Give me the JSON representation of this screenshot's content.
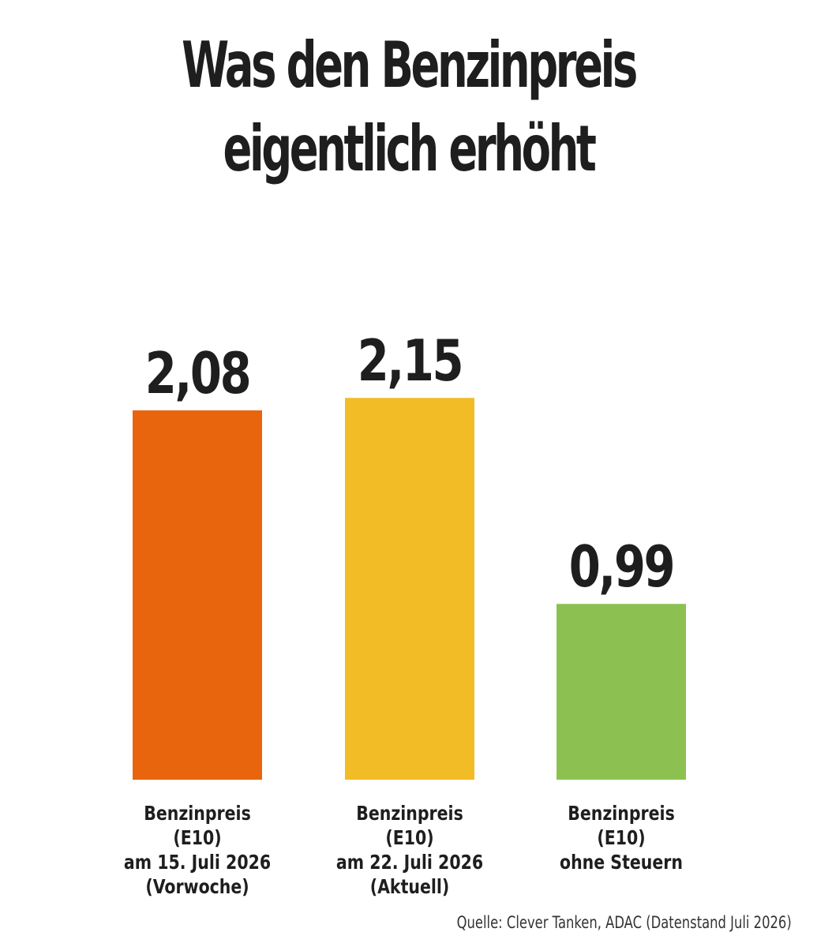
{
  "chart_data": {
    "type": "bar",
    "title_lines": [
      "Was den Benzinpreis",
      "eigentlich erhöht"
    ],
    "categories": [
      {
        "label_lines": [
          "Benzinpreis (E10)",
          "am 15. Juli 2026",
          "(Vorwoche)"
        ],
        "value": 2.08,
        "value_label": "2,08",
        "color": "#e8650e"
      },
      {
        "label_lines": [
          "Benzinpreis (E10)",
          "am 22. Juli 2026",
          "(Aktuell)"
        ],
        "value": 2.15,
        "value_label": "2,15",
        "color": "#f2bc27"
      },
      {
        "label_lines": [
          "Benzinpreis (E10)",
          "ohne Steuern"
        ],
        "value": 0.99,
        "value_label": "0,99",
        "color": "#8cc152"
      }
    ],
    "source": "Quelle: Clever Tanken, ADAC (Datenstand Juli 2026)",
    "grid": false,
    "axes_visible": false
  }
}
